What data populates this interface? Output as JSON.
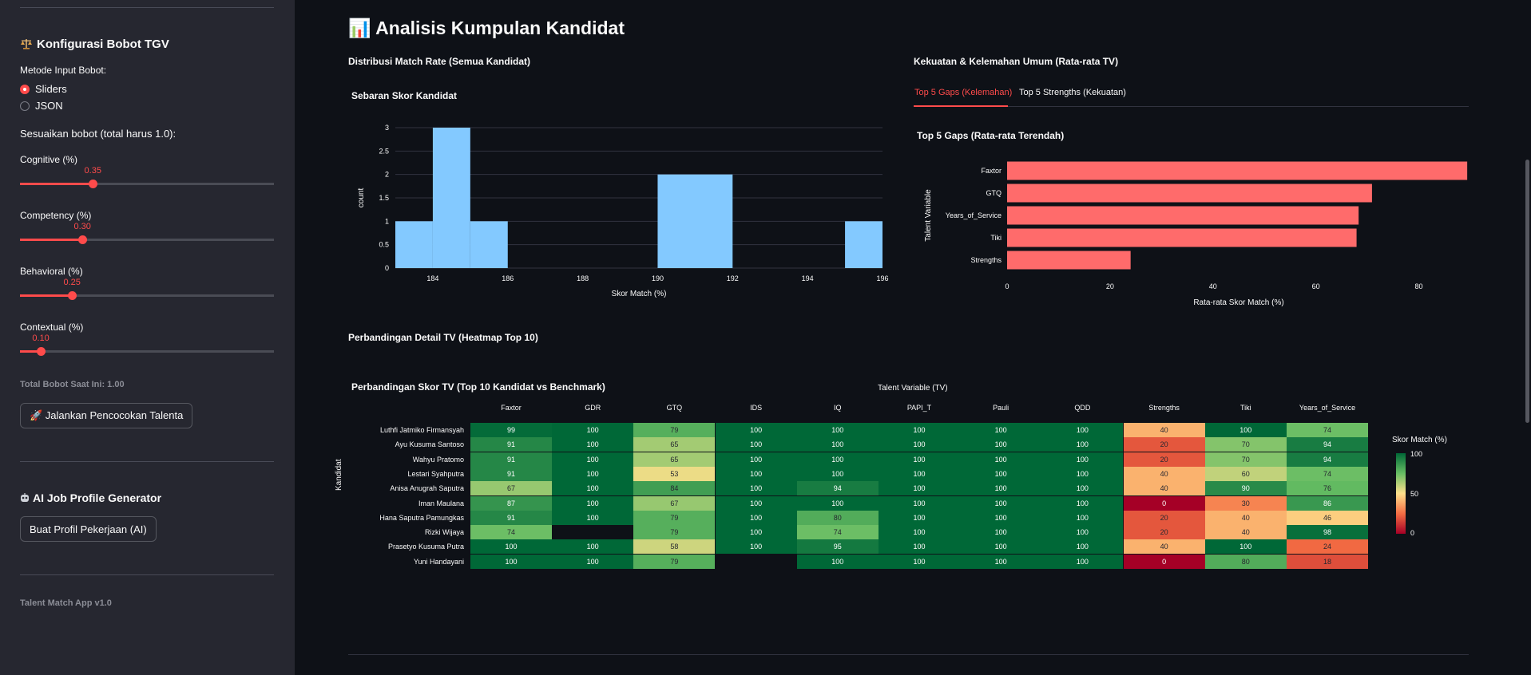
{
  "sidebar": {
    "weights_title": "Konfigurasi Bobot TGV",
    "weights_icon": "balance-scale-icon",
    "input_method_label": "Metode Input Bobot:",
    "options": [
      "Sliders",
      "JSON"
    ],
    "selected_option": "Sliders",
    "adjust_label": "Sesuaikan bobot (total harus 1.0):",
    "sliders": [
      {
        "label": "Cognitive (%)",
        "value": 0.35,
        "display": "0.35"
      },
      {
        "label": "Competency (%)",
        "value": 0.3,
        "display": "0.30"
      },
      {
        "label": "Behavioral (%)",
        "value": 0.25,
        "display": "0.25"
      },
      {
        "label": "Contextual (%)",
        "value": 0.1,
        "display": "0.10"
      }
    ],
    "total_label": "Total Bobot Saat Ini: 1.00",
    "run_button": "🚀 Jalankan Pencocokan Talenta",
    "ai_title": "AI Job Profile Generator",
    "ai_icon": "robot-icon",
    "ai_button": "Buat Profil Pekerjaan (AI)",
    "footer": "Talent Match App v1.0"
  },
  "main": {
    "title": "📊 Analisis Kumpulan Kandidat",
    "dist_title": "Distribusi Match Rate (Semua Kandidat)",
    "strength_title": "Kekuatan & Kelemahan Umum (Rata-rata TV)",
    "tabs": [
      "Top 5 Gaps (Kelemahan)",
      "Top 5 Strengths (Kekuatan)"
    ],
    "active_tab": 0,
    "heatmap_section_title": "Perbandingan Detail TV (Heatmap Top 10)",
    "accent_color": "#ff4b4b"
  },
  "chart_data": [
    {
      "type": "bar",
      "title": "Sebaran Skor Kandidat",
      "xlabel": "Skor Match (%)",
      "ylabel": "count",
      "xlim": [
        183,
        196
      ],
      "ylim": [
        0,
        3
      ],
      "x_ticks": [
        184,
        186,
        188,
        190,
        192,
        194,
        196
      ],
      "y_ticks": [
        0,
        0.5,
        1,
        1.5,
        2,
        2.5,
        3
      ],
      "bins": [
        {
          "x0": 183,
          "x1": 184,
          "count": 1
        },
        {
          "x0": 184,
          "x1": 185,
          "count": 3
        },
        {
          "x0": 185,
          "x1": 186,
          "count": 1
        },
        {
          "x0": 190,
          "x1": 192,
          "count": 2
        },
        {
          "x0": 195,
          "x1": 196,
          "count": 1
        }
      ],
      "color": "#83c9ff"
    },
    {
      "type": "bar",
      "orientation": "horizontal",
      "title": "Top 5 Gaps (Rata-rata Terendah)",
      "xlabel": "Rata-rata Skor Match (%)",
      "ylabel": "Talent Variable",
      "xlim": [
        0,
        90
      ],
      "x_ticks": [
        0,
        20,
        40,
        60,
        80
      ],
      "categories": [
        "Faxtor",
        "GTQ",
        "Years_of_Service",
        "Tiki",
        "Strengths"
      ],
      "values": [
        89.4,
        70.9,
        68.3,
        67.9,
        24
      ],
      "color": "#ff6b6b"
    },
    {
      "type": "heatmap",
      "title": "Perbandingan Skor TV (Top 10 Kandidat vs Benchmark)",
      "xlabel": "Talent Variable (TV)",
      "ylabel": "Kandidat",
      "colorbar_label": "Skor Match (%)",
      "colorbar_ticks": [
        100,
        50,
        0
      ],
      "columns": [
        "Faxtor",
        "GDR",
        "GTQ",
        "IDS",
        "IQ",
        "PAPI_T",
        "Pauli",
        "QDD",
        "Strengths",
        "Tiki",
        "Years_of_Service"
      ],
      "rows": [
        "Luthfi Jatmiko Firmansyah",
        "Ayu Kusuma Santoso",
        "Wahyu Pratomo",
        "Lestari Syahputra",
        "Anisa Anugrah Saputra",
        "Iman Maulana",
        "Hana Saputra Pamungkas",
        "Rizki Wijaya",
        "Prasetyo Kusuma Putra",
        "Yuni Handayani"
      ],
      "values": [
        [
          99,
          100,
          79,
          100,
          100,
          100,
          100,
          100,
          40,
          100,
          74
        ],
        [
          91,
          100,
          65,
          100,
          100,
          100,
          100,
          100,
          20,
          70,
          94
        ],
        [
          91,
          100,
          65,
          100,
          100,
          100,
          100,
          100,
          20,
          70,
          94
        ],
        [
          91,
          100,
          53,
          100,
          100,
          100,
          100,
          100,
          40,
          60,
          74
        ],
        [
          67,
          100,
          84,
          100,
          94,
          100,
          100,
          100,
          40,
          90,
          76
        ],
        [
          87,
          100,
          67,
          100,
          100,
          100,
          100,
          100,
          0,
          30,
          86
        ],
        [
          91,
          100,
          79,
          100,
          80,
          100,
          100,
          100,
          20,
          40,
          46
        ],
        [
          74,
          null,
          79,
          100,
          74,
          100,
          100,
          100,
          20,
          40,
          98
        ],
        [
          100,
          100,
          58,
          100,
          95,
          100,
          100,
          100,
          40,
          100,
          24
        ],
        [
          100,
          100,
          79,
          null,
          100,
          100,
          100,
          100,
          0,
          80,
          18
        ]
      ]
    }
  ]
}
